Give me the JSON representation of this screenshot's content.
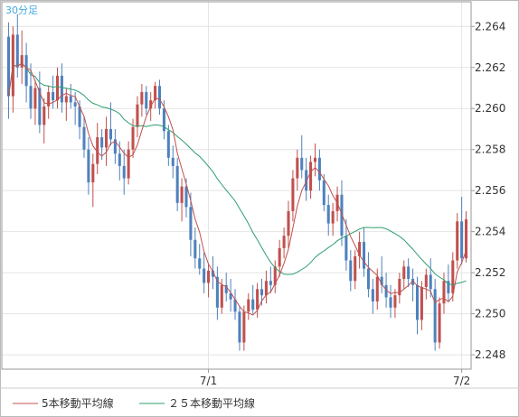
{
  "chart_data": {
    "type": "candlestick",
    "title": "30分足",
    "y_axis_side": "right",
    "ylim": [
      2.2473,
      2.2652
    ],
    "y_ticks": [
      "2.264",
      "2.262",
      "2.260",
      "2.258",
      "2.256",
      "2.254",
      "2.252",
      "2.250",
      "2.248"
    ],
    "x_labels": [
      {
        "label": "7/1",
        "index": 45
      },
      {
        "label": "7/2",
        "index": 102
      }
    ],
    "colors": {
      "up": "#c0504d",
      "down": "#4f81bd",
      "ma5": "#c0504d",
      "ma25": "#2e9e6e"
    },
    "candles": [
      [
        2.2635,
        2.2642,
        2.2595,
        2.2606
      ],
      [
        2.2606,
        2.264,
        2.2598,
        2.2636
      ],
      [
        2.2636,
        2.2646,
        2.2615,
        2.262
      ],
      [
        2.262,
        2.2638,
        2.2612,
        2.2626
      ],
      [
        2.2626,
        2.2632,
        2.2603,
        2.2611
      ],
      [
        2.2611,
        2.2622,
        2.2595,
        2.26
      ],
      [
        2.26,
        2.2614,
        2.2592,
        2.261
      ],
      [
        2.261,
        2.2618,
        2.2588,
        2.2592
      ],
      [
        2.2592,
        2.2605,
        2.2583,
        2.2601
      ],
      [
        2.2601,
        2.2611,
        2.2595,
        2.2608
      ],
      [
        2.2608,
        2.2616,
        2.26,
        2.2604
      ],
      [
        2.2604,
        2.262,
        2.26,
        2.2616
      ],
      [
        2.2616,
        2.2622,
        2.2598,
        2.2603
      ],
      [
        2.2603,
        2.261,
        2.2594,
        2.2606
      ],
      [
        2.2606,
        2.2612,
        2.26,
        2.2603
      ],
      [
        2.2603,
        2.2608,
        2.2592,
        2.2601
      ],
      [
        2.2601,
        2.2604,
        2.2585,
        2.2591
      ],
      [
        2.2591,
        2.2596,
        2.2576,
        2.258
      ],
      [
        2.258,
        2.2586,
        2.2558,
        2.2564
      ],
      [
        2.2564,
        2.2578,
        2.2552,
        2.2573
      ],
      [
        2.2573,
        2.2593,
        2.2568,
        2.2586
      ],
      [
        2.2586,
        2.259,
        2.2575,
        2.2581
      ],
      [
        2.2581,
        2.2596,
        2.2572,
        2.259
      ],
      [
        2.259,
        2.2603,
        2.2582,
        2.2585
      ],
      [
        2.2585,
        2.259,
        2.2573,
        2.2578
      ],
      [
        2.2578,
        2.2584,
        2.2565,
        2.2572
      ],
      [
        2.2572,
        2.258,
        2.2558,
        2.2566
      ],
      [
        2.2566,
        2.2584,
        2.2563,
        2.258
      ],
      [
        2.258,
        2.2595,
        2.2576,
        2.2591
      ],
      [
        2.2591,
        2.2606,
        2.2586,
        2.2602
      ],
      [
        2.2602,
        2.2612,
        2.2596,
        2.2608
      ],
      [
        2.2608,
        2.2611,
        2.2597,
        2.26
      ],
      [
        2.26,
        2.2608,
        2.2594,
        2.2604
      ],
      [
        2.2604,
        2.2613,
        2.26,
        2.2611
      ],
      [
        2.2611,
        2.2614,
        2.2597,
        2.26
      ],
      [
        2.26,
        2.2604,
        2.2585,
        2.2589
      ],
      [
        2.2589,
        2.2592,
        2.2572,
        2.2576
      ],
      [
        2.2576,
        2.2582,
        2.2566,
        2.2572
      ],
      [
        2.2572,
        2.2576,
        2.255,
        2.2554
      ],
      [
        2.2554,
        2.2566,
        2.2545,
        2.2562
      ],
      [
        2.2562,
        2.2566,
        2.2547,
        2.2552
      ],
      [
        2.2552,
        2.2559,
        2.2528,
        2.2536
      ],
      [
        2.2536,
        2.2542,
        2.2522,
        2.2527
      ],
      [
        2.2527,
        2.2534,
        2.2519,
        2.2522
      ],
      [
        2.2522,
        2.253,
        2.251,
        2.2515
      ],
      [
        2.2515,
        2.2524,
        2.2508,
        2.2521
      ],
      [
        2.2521,
        2.2528,
        2.2512,
        2.2518
      ],
      [
        2.2518,
        2.2523,
        2.2497,
        2.2503
      ],
      [
        2.2503,
        2.2517,
        2.25,
        2.2514
      ],
      [
        2.2514,
        2.252,
        2.2506,
        2.251
      ],
      [
        2.251,
        2.2517,
        2.2501,
        2.2507
      ],
      [
        2.2507,
        2.2512,
        2.2497,
        2.2501
      ],
      [
        2.2501,
        2.2504,
        2.2482,
        2.2486
      ],
      [
        2.2486,
        2.2504,
        2.2482,
        2.2501
      ],
      [
        2.2501,
        2.251,
        2.2497,
        2.2507
      ],
      [
        2.2507,
        2.2514,
        2.25,
        2.2502
      ],
      [
        2.2502,
        2.2515,
        2.2498,
        2.2512
      ],
      [
        2.2512,
        2.2517,
        2.2504,
        2.2509
      ],
      [
        2.2509,
        2.2521,
        2.2505,
        2.2516
      ],
      [
        2.2516,
        2.2523,
        2.251,
        2.2514
      ],
      [
        2.2514,
        2.2526,
        2.251,
        2.2523
      ],
      [
        2.2523,
        2.2536,
        2.2518,
        2.2532
      ],
      [
        2.2532,
        2.2542,
        2.2527,
        2.2538
      ],
      [
        2.2538,
        2.2555,
        2.2532,
        2.255
      ],
      [
        2.255,
        2.257,
        2.2545,
        2.2566
      ],
      [
        2.2566,
        2.258,
        2.256,
        2.2576
      ],
      [
        2.2576,
        2.2587,
        2.2566,
        2.257
      ],
      [
        2.257,
        2.2576,
        2.2555,
        2.256
      ],
      [
        2.256,
        2.2577,
        2.2556,
        2.2574
      ],
      [
        2.2574,
        2.2583,
        2.2567,
        2.2576
      ],
      [
        2.2576,
        2.258,
        2.256,
        2.2565
      ],
      [
        2.2565,
        2.2568,
        2.255,
        2.2553
      ],
      [
        2.2553,
        2.2558,
        2.2538,
        2.2544
      ],
      [
        2.2544,
        2.2554,
        2.2538,
        2.255
      ],
      [
        2.255,
        2.2562,
        2.2545,
        2.2558
      ],
      [
        2.2558,
        2.2565,
        2.2533,
        2.2538
      ],
      [
        2.2538,
        2.2546,
        2.2521,
        2.2526
      ],
      [
        2.2526,
        2.2531,
        2.2511,
        2.2516
      ],
      [
        2.2516,
        2.2531,
        2.2512,
        2.2528
      ],
      [
        2.2528,
        2.254,
        2.2522,
        2.2535
      ],
      [
        2.2535,
        2.2542,
        2.2518,
        2.2522
      ],
      [
        2.2522,
        2.253,
        2.2508,
        2.2512
      ],
      [
        2.2512,
        2.2517,
        2.25,
        2.2506
      ],
      [
        2.2506,
        2.2522,
        2.2502,
        2.2518
      ],
      [
        2.2518,
        2.2528,
        2.251,
        2.2514
      ],
      [
        2.2514,
        2.252,
        2.2503,
        2.2508
      ],
      [
        2.2508,
        2.2514,
        2.2498,
        2.2503
      ],
      [
        2.2503,
        2.2512,
        2.2498,
        2.2509
      ],
      [
        2.2509,
        2.252,
        2.2505,
        2.2517
      ],
      [
        2.2517,
        2.2526,
        2.2512,
        2.2523
      ],
      [
        2.2523,
        2.2527,
        2.2513,
        2.2517
      ],
      [
        2.2517,
        2.2522,
        2.2506,
        2.2514
      ],
      [
        2.2514,
        2.2518,
        2.249,
        2.2497
      ],
      [
        2.2497,
        2.2516,
        2.2492,
        2.2513
      ],
      [
        2.2513,
        2.2522,
        2.2507,
        2.2519
      ],
      [
        2.2519,
        2.2527,
        2.2508,
        2.2512
      ],
      [
        2.2512,
        2.2517,
        2.2482,
        2.2486
      ],
      [
        2.2486,
        2.2508,
        2.2483,
        2.2505
      ],
      [
        2.2505,
        2.252,
        2.25,
        2.2516
      ],
      [
        2.2516,
        2.2524,
        2.2506,
        2.251
      ],
      [
        2.251,
        2.253,
        2.2506,
        2.2526
      ],
      [
        2.2526,
        2.2549,
        2.2522,
        2.2545
      ],
      [
        2.2545,
        2.2557,
        2.2524,
        2.2527
      ],
      [
        2.2527,
        2.255,
        2.2525,
        2.2546
      ]
    ],
    "series": [
      {
        "name": "5本移動平均線",
        "type": "sma",
        "period": 5
      },
      {
        "name": "２５本移動平均線",
        "type": "sma",
        "period": 25
      }
    ]
  }
}
